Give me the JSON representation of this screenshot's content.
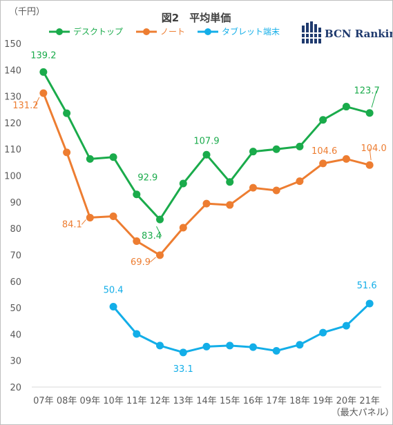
{
  "chart_data": {
    "type": "line",
    "title": "図2　平均単価",
    "unit": "（千円）",
    "categories": [
      "07年",
      "08年",
      "09年",
      "10年",
      "11年",
      "12年",
      "13年",
      "14年",
      "15年",
      "16年",
      "17年",
      "18年",
      "19年",
      "20年",
      "21年"
    ],
    "x_note": "（最大パネル）",
    "ylim": [
      20,
      150
    ],
    "yticks": [
      20,
      30,
      40,
      50,
      60,
      70,
      80,
      90,
      100,
      110,
      120,
      130,
      140,
      150
    ],
    "grid": false,
    "legend_position": "top-left",
    "series": [
      {
        "name": "デスクトップ",
        "color": "#1aab4b",
        "values": [
          139.2,
          123.6,
          106.3,
          107.0,
          92.9,
          83.4,
          97.0,
          107.9,
          97.6,
          109.1,
          110.0,
          111.0,
          121.1,
          126.1,
          123.7
        ]
      },
      {
        "name": "ノート",
        "color": "#ed7d31",
        "values": [
          131.2,
          108.8,
          84.1,
          84.6,
          75.2,
          69.9,
          80.3,
          89.4,
          88.9,
          95.4,
          94.4,
          97.9,
          104.6,
          106.3,
          104.0
        ]
      },
      {
        "name": "タブレット端末",
        "color": "#13aee8",
        "values": [
          null,
          null,
          null,
          50.4,
          40.1,
          35.7,
          33.1,
          35.3,
          35.7,
          35.1,
          33.7,
          36.0,
          40.6,
          43.2,
          51.6
        ]
      }
    ],
    "annotations": [
      {
        "series": 0,
        "index": 0,
        "text": "139.2"
      },
      {
        "series": 0,
        "index": 4,
        "text": "92.9"
      },
      {
        "series": 0,
        "index": 5,
        "text": "83.4"
      },
      {
        "series": 0,
        "index": 7,
        "text": "107.9"
      },
      {
        "series": 0,
        "index": 14,
        "text": "123.7"
      },
      {
        "series": 1,
        "index": 0,
        "text": "131.2"
      },
      {
        "series": 1,
        "index": 2,
        "text": "84.1"
      },
      {
        "series": 1,
        "index": 5,
        "text": "69.9"
      },
      {
        "series": 1,
        "index": 12,
        "text": "104.6"
      },
      {
        "series": 1,
        "index": 14,
        "text": "104.0"
      },
      {
        "series": 2,
        "index": 3,
        "text": "50.4"
      },
      {
        "series": 2,
        "index": 6,
        "text": "33.1"
      },
      {
        "series": 2,
        "index": 14,
        "text": "51.6"
      }
    ]
  },
  "logo": {
    "text": "BCN Ranking",
    "icon": "bcn-logo-icon",
    "color": "#1f3a6e"
  }
}
